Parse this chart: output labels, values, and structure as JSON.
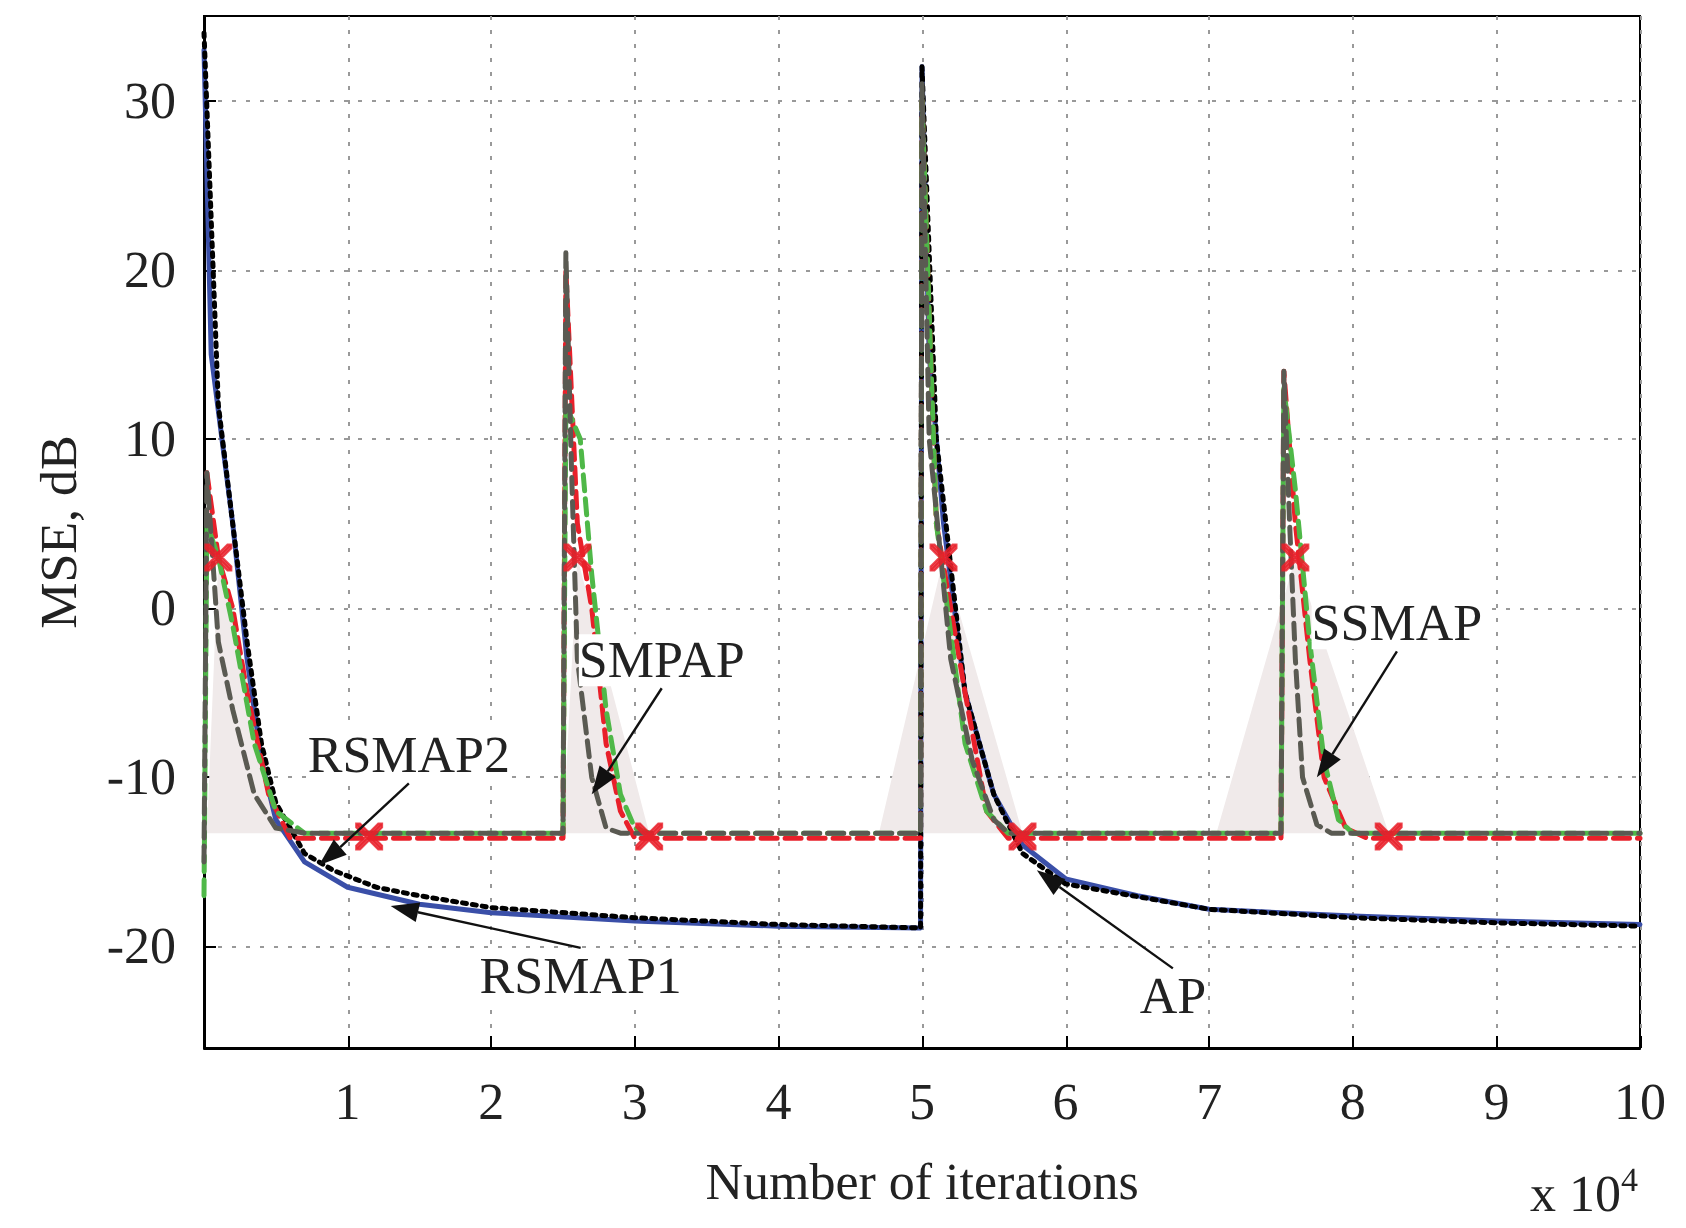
{
  "chart_data": {
    "type": "line",
    "xlabel": "Number of iterations",
    "ylabel": "MSE, dB",
    "xlim": [
      0,
      10
    ],
    "xticks": [
      1,
      2,
      3,
      4,
      5,
      6,
      7,
      8,
      9,
      10
    ],
    "ylim": [
      -26,
      35
    ],
    "yticks": [
      -20,
      -10,
      0,
      10,
      20,
      30
    ],
    "grid": true,
    "annotations": [
      {
        "text": "RSMAP2",
        "x": 0.8,
        "y": -15.2
      },
      {
        "text": "RSMAP1",
        "x": 1.3,
        "y": -17.6
      },
      {
        "text": "SMPAP",
        "x": 2.7,
        "y": -11
      },
      {
        "text": "SSMAP",
        "x": 7.75,
        "y": -10
      },
      {
        "text": "AP",
        "x": 5.8,
        "y": -15.5
      },
      "x 10$^{4}$"
    ],
    "series": [
      {
        "type": "area",
        "color": "#f0eaea",
        "x": [
          0.02,
          0.1,
          0.55,
          1.0,
          2.5,
          2.6,
          3.1,
          3.5,
          4.7,
          5.15,
          5.7,
          6.0,
          7.05,
          7.6,
          8.25
        ],
        "values": [
          -13.3,
          3,
          -13.3,
          null,
          -13.3,
          3,
          -13.3,
          null,
          -13.3,
          3,
          -13.3,
          null,
          -13.3,
          3,
          -13.3
        ]
      },
      {
        "color": "#3a4fa8",
        "line_style": "solid",
        "x": [
          0,
          0.05,
          0.2,
          0.3,
          0.4,
          0.5,
          0.7,
          1.0,
          1.5,
          2,
          3,
          4,
          4.99,
          5.0,
          5.05,
          5.15,
          5.3,
          5.5,
          5.7,
          6.0,
          6.5,
          7,
          8,
          9,
          10
        ],
        "values": [
          33,
          15,
          5,
          -3,
          -9,
          -12.5,
          -15,
          -16.5,
          -17.5,
          -18,
          -18.5,
          -18.8,
          -18.9,
          32,
          15,
          5,
          -5,
          -11,
          -14,
          -16,
          -17,
          -17.8,
          -18.2,
          -18.5,
          -18.7
        ]
      },
      {
        "color": "#000000",
        "line_style": "dotted",
        "x": [
          0,
          0.1,
          0.2,
          0.3,
          0.4,
          0.5,
          0.7,
          0.9,
          1.2,
          1.5,
          2,
          3,
          4,
          4.99,
          5.0,
          5.1,
          5.3,
          5.5,
          5.7,
          6,
          7,
          8,
          9,
          10
        ],
        "values": [
          34,
          12,
          5,
          -2,
          -8,
          -11.5,
          -14.5,
          -15.5,
          -16.5,
          -17,
          -17.7,
          -18.3,
          -18.7,
          -18.9,
          32,
          10,
          -5,
          -11,
          -14.5,
          -16.3,
          -17.8,
          -18.3,
          -18.6,
          -18.8
        ]
      },
      {
        "color": "#e8202a",
        "line_style": "dashed",
        "x": [
          0.02,
          0.1,
          0.2,
          0.3,
          0.45,
          0.6,
          2.5,
          2.52,
          2.6,
          2.7,
          2.8,
          2.9,
          3.0,
          4.99,
          5.0,
          5.1,
          5.3,
          5.45,
          5.6,
          7.5,
          7.52,
          7.6,
          7.7,
          7.8,
          7.95,
          8.1,
          10
        ],
        "values": [
          8,
          3,
          0,
          -5,
          -11,
          -13.6,
          -13.6,
          20,
          5,
          0,
          -8,
          -12,
          -13.6,
          -13.6,
          30,
          5,
          -5,
          -12,
          -13.6,
          -13.6,
          14,
          5,
          -3,
          -10,
          -13,
          -13.6,
          -13.6
        ]
      },
      {
        "color": "#4fb848",
        "line_style": "dashed",
        "x": [
          0,
          0.02,
          0.1,
          0.2,
          0.35,
          0.5,
          0.7,
          2.5,
          2.52,
          2.62,
          2.7,
          2.8,
          2.9,
          3.0,
          3.1,
          4.99,
          5.0,
          5.1,
          5.3,
          5.45,
          5.6,
          7.5,
          7.52,
          7.6,
          7.7,
          7.8,
          7.9,
          8.0,
          10
        ],
        "values": [
          -17,
          5,
          3,
          -1,
          -8,
          -12,
          -13.3,
          -13.3,
          12,
          10,
          2,
          -6,
          -11,
          -13,
          -13.3,
          -13.3,
          30,
          5,
          -8,
          -12,
          -13.3,
          -13.3,
          13,
          7,
          -2,
          -9,
          -12.5,
          -13.3,
          -13.3
        ]
      },
      {
        "color": "#5a5a52",
        "line_style": "dashed",
        "x": [
          0,
          0.02,
          0.1,
          0.2,
          0.35,
          0.5,
          0.7,
          2.5,
          2.52,
          2.56,
          2.6,
          2.7,
          2.8,
          2.9,
          4.99,
          5.0,
          5.05,
          5.2,
          5.35,
          5.5,
          5.6,
          7.5,
          7.52,
          7.56,
          7.6,
          7.65,
          7.75,
          7.85,
          10
        ],
        "values": [
          -15,
          8,
          -2,
          -6,
          -11,
          -13,
          -13.3,
          -13.3,
          21,
          8,
          -3,
          -10,
          -13,
          -13.3,
          -13.3,
          31,
          10,
          -3,
          -9,
          -12.5,
          -13.3,
          -13.3,
          14,
          5,
          -3,
          -10,
          -12.8,
          -13.3,
          -13.3
        ]
      },
      {
        "type": "scatter",
        "marker": "cross",
        "color": "#e8202a",
        "x": [
          0.1,
          1.15,
          2.6,
          3.1,
          5.15,
          5.7,
          7.6,
          8.25
        ],
        "values": [
          3,
          -13.5,
          3,
          -13.5,
          3,
          -13.5,
          3,
          -13.5
        ]
      }
    ]
  }
}
